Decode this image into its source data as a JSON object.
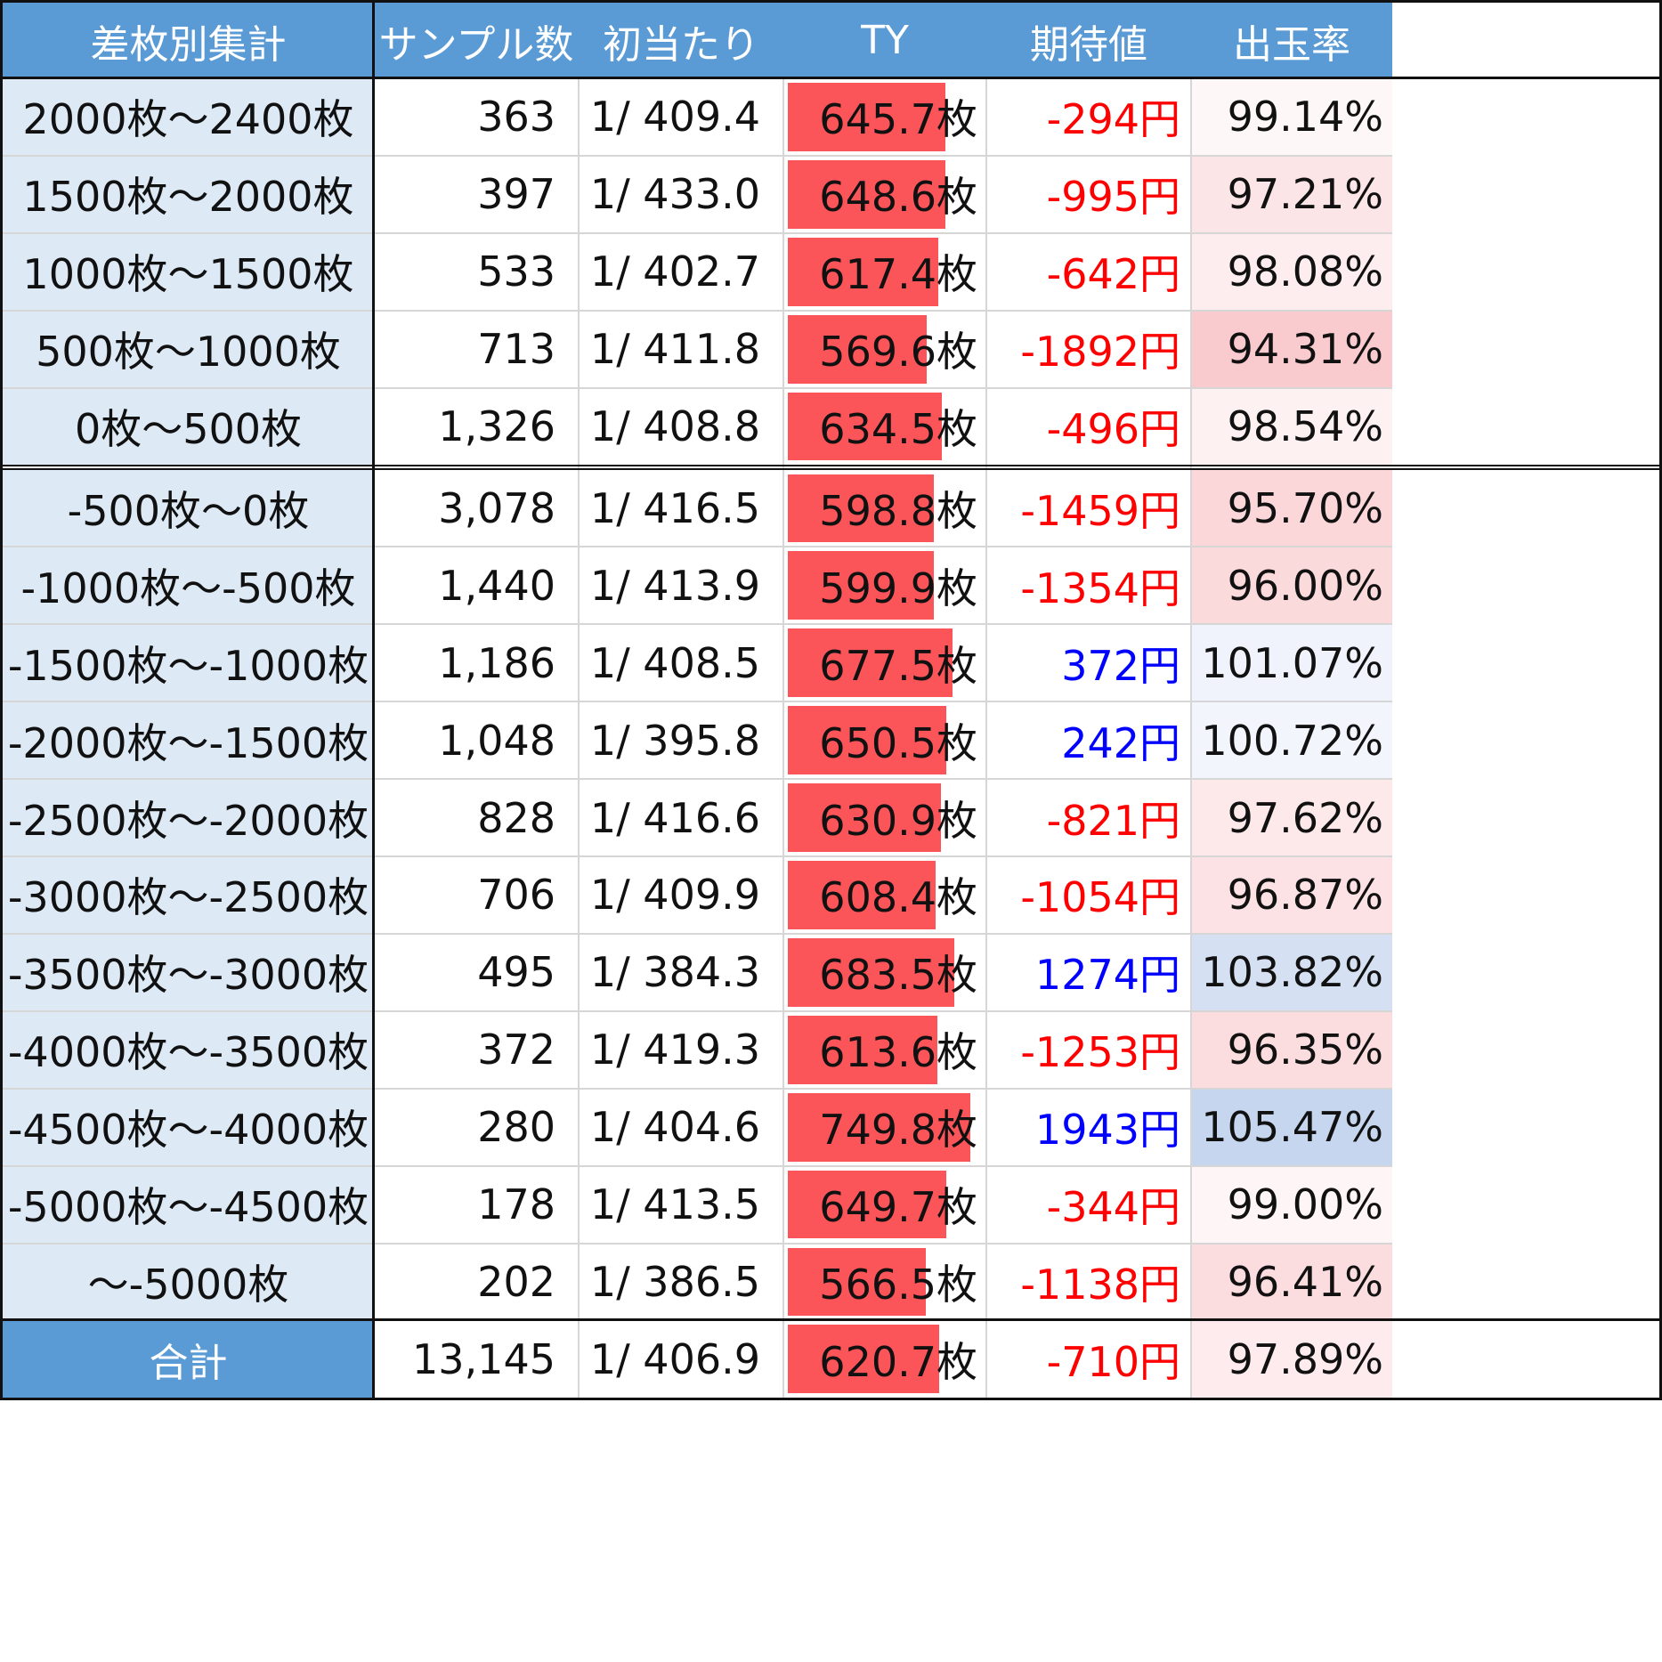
{
  "colors": {
    "header_bg": "#5b9bd5",
    "header_text": "#ffffff",
    "label_bg": "#ddeaf6",
    "ty_bar": "#fc5559",
    "ev_negative": "#ff0000",
    "ev_positive": "#0000ff",
    "rate_low": "#f9c7cb",
    "rate_high": "#c5d6ee"
  },
  "chart_data": {
    "type": "table",
    "columns": [
      "差枚別集計",
      "サンプル数",
      "初当たり",
      "TY",
      "期待値",
      "出玉率"
    ],
    "rows": [
      {
        "label": "2000枚〜2400枚",
        "samples": "363",
        "hit": "1/ 409.4",
        "ty": 645.7,
        "ty_text": "645.7枚",
        "ev": -294,
        "ev_text": "-294円",
        "rate": 99.14,
        "rate_text": "99.14%"
      },
      {
        "label": "1500枚〜2000枚",
        "samples": "397",
        "hit": "1/ 433.0",
        "ty": 648.6,
        "ty_text": "648.6枚",
        "ev": -995,
        "ev_text": "-995円",
        "rate": 97.21,
        "rate_text": "97.21%"
      },
      {
        "label": "1000枚〜1500枚",
        "samples": "533",
        "hit": "1/ 402.7",
        "ty": 617.4,
        "ty_text": "617.4枚",
        "ev": -642,
        "ev_text": "-642円",
        "rate": 98.08,
        "rate_text": "98.08%"
      },
      {
        "label": "500枚〜1000枚",
        "samples": "713",
        "hit": "1/ 411.8",
        "ty": 569.6,
        "ty_text": "569.6枚",
        "ev": -1892,
        "ev_text": "-1892円",
        "rate": 94.31,
        "rate_text": "94.31%"
      },
      {
        "label": "0枚〜500枚",
        "samples": "1,326",
        "hit": "1/ 408.8",
        "ty": 634.5,
        "ty_text": "634.5枚",
        "ev": -496,
        "ev_text": "-496円",
        "rate": 98.54,
        "rate_text": "98.54%"
      },
      {
        "label": "-500枚〜0枚",
        "samples": "3,078",
        "hit": "1/ 416.5",
        "ty": 598.8,
        "ty_text": "598.8枚",
        "ev": -1459,
        "ev_text": "-1459円",
        "rate": 95.7,
        "rate_text": "95.70%"
      },
      {
        "label": "-1000枚〜-500枚",
        "samples": "1,440",
        "hit": "1/ 413.9",
        "ty": 599.9,
        "ty_text": "599.9枚",
        "ev": -1354,
        "ev_text": "-1354円",
        "rate": 96.0,
        "rate_text": "96.00%"
      },
      {
        "label": "-1500枚〜-1000枚",
        "samples": "1,186",
        "hit": "1/ 408.5",
        "ty": 677.5,
        "ty_text": "677.5枚",
        "ev": 372,
        "ev_text": "372円",
        "rate": 101.07,
        "rate_text": "101.07%"
      },
      {
        "label": "-2000枚〜-1500枚",
        "samples": "1,048",
        "hit": "1/ 395.8",
        "ty": 650.5,
        "ty_text": "650.5枚",
        "ev": 242,
        "ev_text": "242円",
        "rate": 100.72,
        "rate_text": "100.72%"
      },
      {
        "label": "-2500枚〜-2000枚",
        "samples": "828",
        "hit": "1/ 416.6",
        "ty": 630.9,
        "ty_text": "630.9枚",
        "ev": -821,
        "ev_text": "-821円",
        "rate": 97.62,
        "rate_text": "97.62%"
      },
      {
        "label": "-3000枚〜-2500枚",
        "samples": "706",
        "hit": "1/ 409.9",
        "ty": 608.4,
        "ty_text": "608.4枚",
        "ev": -1054,
        "ev_text": "-1054円",
        "rate": 96.87,
        "rate_text": "96.87%"
      },
      {
        "label": "-3500枚〜-3000枚",
        "samples": "495",
        "hit": "1/ 384.3",
        "ty": 683.5,
        "ty_text": "683.5枚",
        "ev": 1274,
        "ev_text": "1274円",
        "rate": 103.82,
        "rate_text": "103.82%"
      },
      {
        "label": "-4000枚〜-3500枚",
        "samples": "372",
        "hit": "1/ 419.3",
        "ty": 613.6,
        "ty_text": "613.6枚",
        "ev": -1253,
        "ev_text": "-1253円",
        "rate": 96.35,
        "rate_text": "96.35%"
      },
      {
        "label": "-4500枚〜-4000枚",
        "samples": "280",
        "hit": "1/ 404.6",
        "ty": 749.8,
        "ty_text": "749.8枚",
        "ev": 1943,
        "ev_text": "1943円",
        "rate": 105.47,
        "rate_text": "105.47%"
      },
      {
        "label": "-5000枚〜-4500枚",
        "samples": "178",
        "hit": "1/ 413.5",
        "ty": 649.7,
        "ty_text": "649.7枚",
        "ev": -344,
        "ev_text": "-344円",
        "rate": 99.0,
        "rate_text": "99.00%"
      },
      {
        "label": "〜-5000枚",
        "samples": "202",
        "hit": "1/ 386.5",
        "ty": 566.5,
        "ty_text": "566.5枚",
        "ev": -1138,
        "ev_text": "-1138円",
        "rate": 96.41,
        "rate_text": "96.41%"
      }
    ],
    "total": {
      "label": "合計",
      "samples": "13,145",
      "hit": "1/ 406.9",
      "ty": 620.7,
      "ty_text": "620.7枚",
      "ev": -710,
      "ev_text": "-710円",
      "rate": 97.89,
      "rate_text": "97.89%"
    },
    "ty_bar_max": 749.8,
    "rate_neutral": 100
  }
}
